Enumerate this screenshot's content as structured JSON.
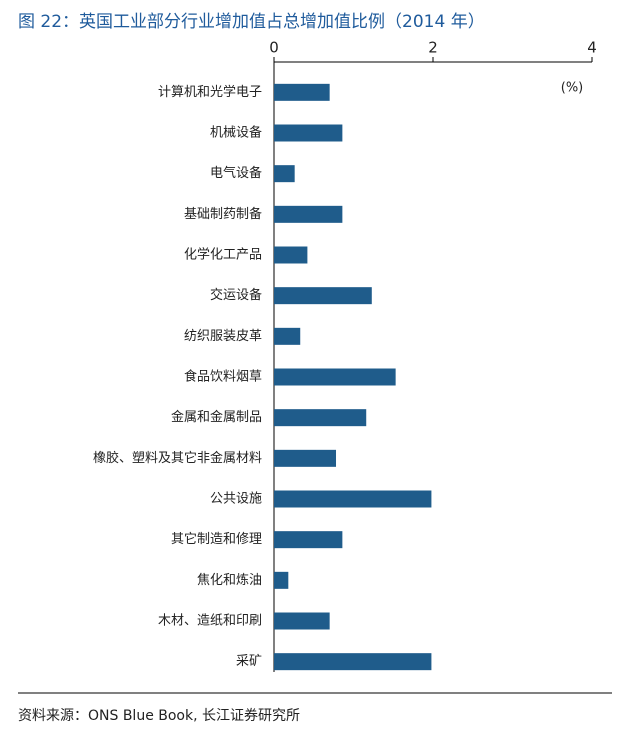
{
  "chart_data": {
    "type": "bar",
    "orientation": "horizontal",
    "title": "图 22：英国工业部分行业增加值占总增加值比例（2014 年）",
    "unit_label": "(%)",
    "source": "资料来源：ONS Blue Book, 长江证券研究所",
    "categories": [
      "计算机和光学电子",
      "机械设备",
      "电气设备",
      "基础制药制备",
      "化学化工产品",
      "交运设备",
      "纺织服装皮革",
      "食品饮料烟草",
      "金属和金属制品",
      "橡胶、塑料及其它非金属材料",
      "公共设施",
      "其它制造和修理",
      "焦化和炼油",
      "木材、造纸和印刷",
      "采矿"
    ],
    "values": [
      0.7,
      0.86,
      0.26,
      0.86,
      0.42,
      1.23,
      0.33,
      1.53,
      1.16,
      0.78,
      1.98,
      0.86,
      0.18,
      0.7,
      1.98
    ],
    "color": "#1f5c8b",
    "xlim": [
      0,
      4
    ],
    "xticks": [
      0,
      2,
      4
    ]
  }
}
